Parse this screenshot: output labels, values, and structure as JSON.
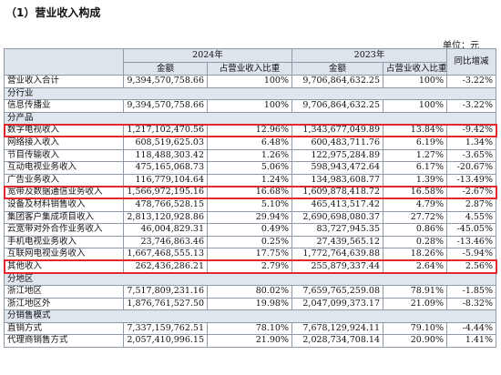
{
  "title": "（1）营业收入构成",
  "unit": "单位：元",
  "header": {
    "year_2024": "2024年",
    "year_2023": "2023年",
    "yoy": "同比增减",
    "amount": "金额",
    "ratio": "占营业收入比重"
  },
  "rows": [
    {
      "type": "data",
      "label": "营业收入合计",
      "a24": "9,394,570,758.66",
      "r24": "100%",
      "a23": "9,706,864,632.25",
      "r23": "100%",
      "yoy": "-3.22%"
    },
    {
      "type": "section",
      "label": "分行业"
    },
    {
      "type": "data",
      "label": "信息传播业",
      "a24": "9,394,570,758.66",
      "r24": "100%",
      "a23": "9,706,864,632.25",
      "r23": "100%",
      "yoy": "-3.22%"
    },
    {
      "type": "section",
      "label": "分产品"
    },
    {
      "type": "data",
      "label": "数字电视收入",
      "a24": "1,217,102,470.56",
      "r24": "12.96%",
      "a23": "1,343,677,049.89",
      "r23": "13.84%",
      "yoy": "-9.42%",
      "hl": true
    },
    {
      "type": "data",
      "label": "网络接入收入",
      "a24": "608,519,625.03",
      "r24": "6.48%",
      "a23": "600,483,711.76",
      "r23": "6.19%",
      "yoy": "1.34%"
    },
    {
      "type": "data",
      "label": "节目传输收入",
      "a24": "118,488,303.42",
      "r24": "1.26%",
      "a23": "122,975,284.89",
      "r23": "1.27%",
      "yoy": "-3.65%"
    },
    {
      "type": "data",
      "label": "互动电视业务收入",
      "a24": "475,165,068.73",
      "r24": "5.06%",
      "a23": "598,943,472.64",
      "r23": "6.17%",
      "yoy": "-20.67%"
    },
    {
      "type": "data",
      "label": "广告业务收入",
      "a24": "116,779,104.64",
      "r24": "1.24%",
      "a23": "134,983,608.77",
      "r23": "1.39%",
      "yoy": "-13.49%"
    },
    {
      "type": "data",
      "label": "宽带及数据通信业务收入",
      "a24": "1,566,972,195.16",
      "r24": "16.68%",
      "a23": "1,609,878,418.72",
      "r23": "16.58%",
      "yoy": "-2.67%",
      "hl": true
    },
    {
      "type": "data",
      "label": "设备及材料销售收入",
      "a24": "478,766,528.15",
      "r24": "5.10%",
      "a23": "465,413,517.42",
      "r23": "4.79%",
      "yoy": "2.87%"
    },
    {
      "type": "data",
      "label": "集团客户集成项目收入",
      "a24": "2,813,120,928.86",
      "r24": "29.94%",
      "a23": "2,690,698,080.37",
      "r23": "27.72%",
      "yoy": "4.55%"
    },
    {
      "type": "data",
      "label": "云宽带对外合作业务收入",
      "a24": "46,004,829.31",
      "r24": "0.49%",
      "a23": "83,727,945.35",
      "r23": "0.86%",
      "yoy": "-45.05%"
    },
    {
      "type": "data",
      "label": "手机电视业务收入",
      "a24": "23,746,863.46",
      "r24": "0.25%",
      "a23": "27,439,565.12",
      "r23": "0.28%",
      "yoy": "-13.46%"
    },
    {
      "type": "data",
      "label": "互联网电视业务收入",
      "a24": "1,667,468,555.13",
      "r24": "17.75%",
      "a23": "1,772,764,639.88",
      "r23": "18.26%",
      "yoy": "-5.94%"
    },
    {
      "type": "data",
      "label": "其他收入",
      "a24": "262,436,286.21",
      "r24": "2.79%",
      "a23": "255,879,337.44",
      "r23": "2.64%",
      "yoy": "2.56%",
      "hl": true
    },
    {
      "type": "section",
      "label": "分地区"
    },
    {
      "type": "data",
      "label": "浙江地区",
      "a24": "7,517,809,231.16",
      "r24": "80.02%",
      "a23": "7,659,765,259.08",
      "r23": "78.91%",
      "yoy": "-1.85%"
    },
    {
      "type": "data",
      "label": "浙江地区外",
      "a24": "1,876,761,527.50",
      "r24": "19.98%",
      "a23": "2,047,099,373.17",
      "r23": "21.09%",
      "yoy": "-8.32%"
    },
    {
      "type": "section",
      "label": "分销售模式"
    },
    {
      "type": "data",
      "label": "直销方式",
      "a24": "7,337,159,762.51",
      "r24": "78.10%",
      "a23": "7,678,129,924.11",
      "r23": "79.10%",
      "yoy": "-4.44%"
    },
    {
      "type": "data",
      "label": "代理商销售方式",
      "a24": "2,057,410,996.15",
      "r24": "21.90%",
      "a23": "2,028,734,708.14",
      "r23": "20.90%",
      "yoy": "1.41%"
    }
  ]
}
